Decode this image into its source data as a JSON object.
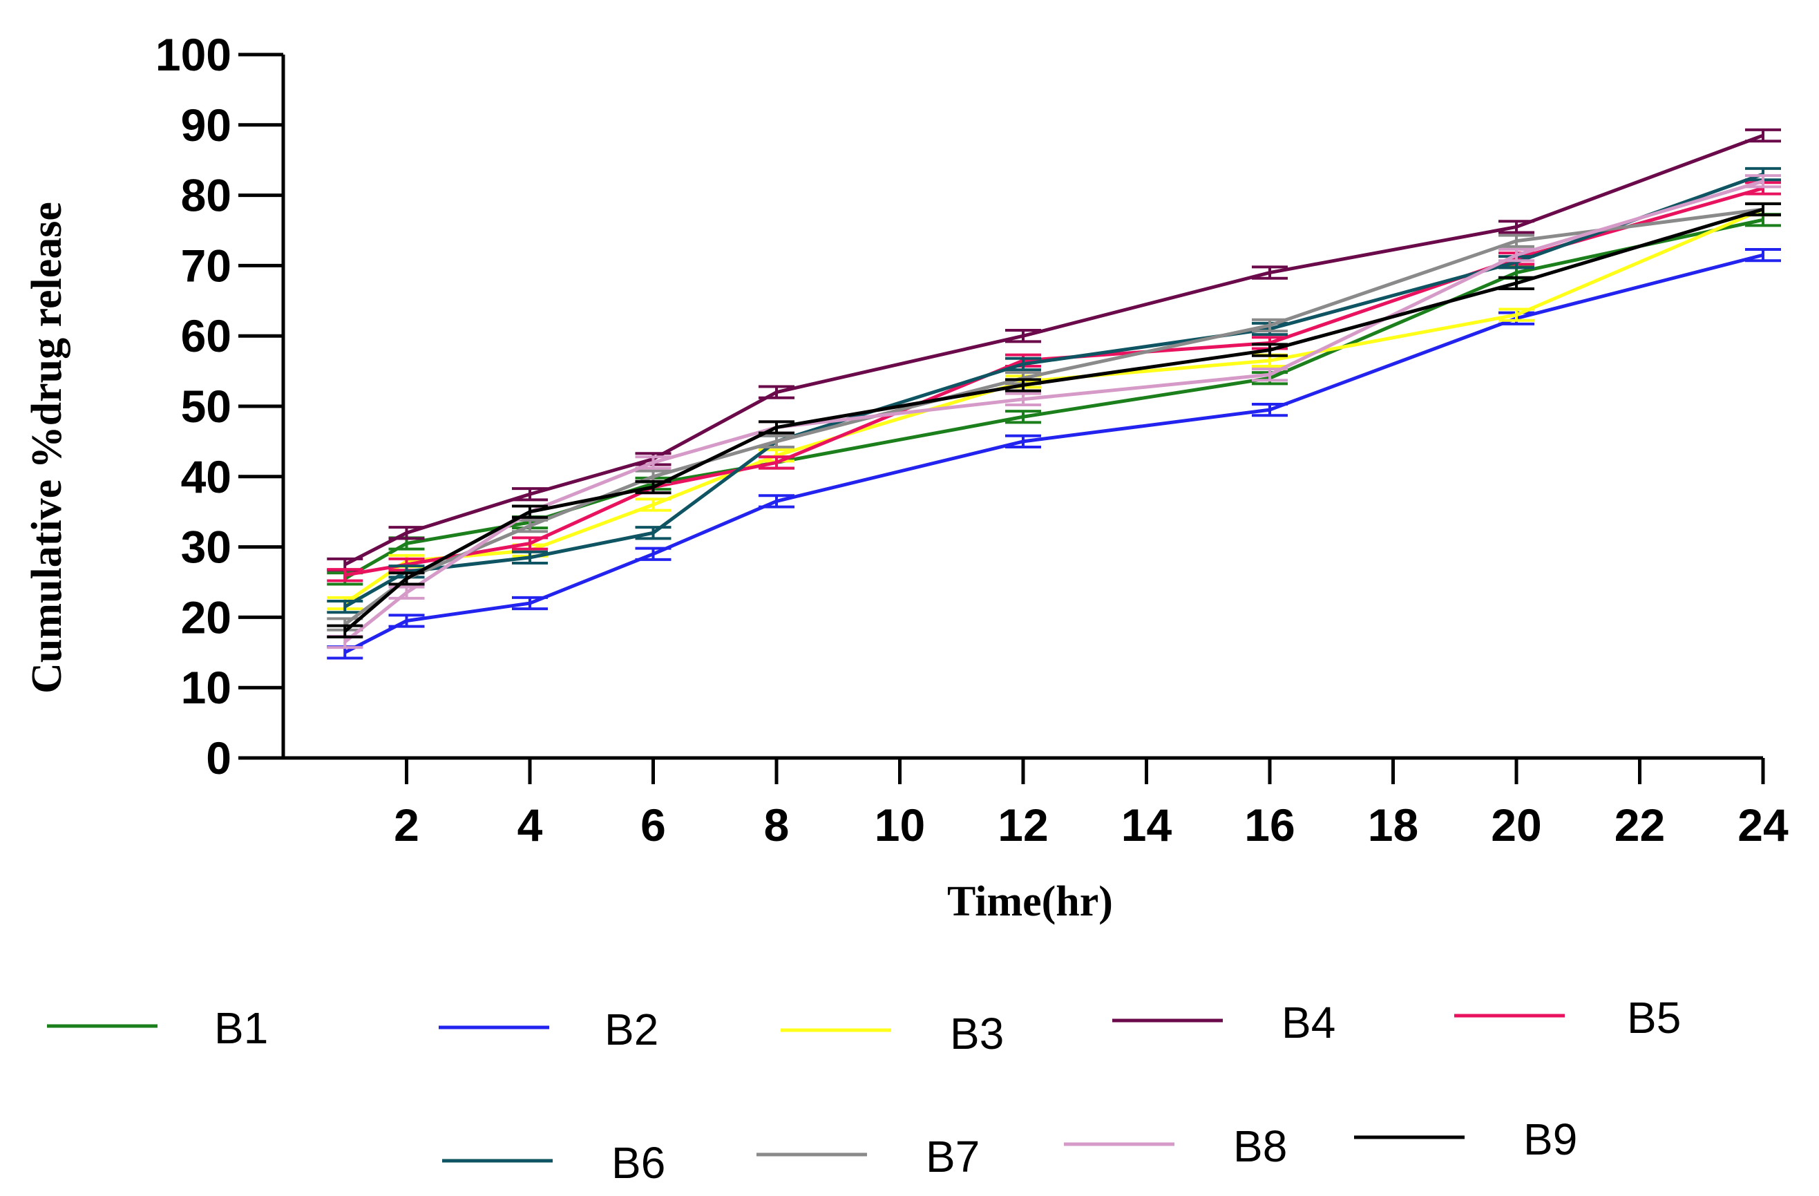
{
  "chart_data": {
    "type": "line",
    "title": "",
    "xlabel": "Time(hr)",
    "ylabel": "Cumulative %drug release",
    "xlim": [
      0,
      24
    ],
    "ylim": [
      0,
      100
    ],
    "x_ticks": [
      2,
      4,
      6,
      8,
      10,
      12,
      14,
      16,
      18,
      20,
      22,
      24
    ],
    "y_ticks": [
      0,
      10,
      20,
      30,
      40,
      50,
      60,
      70,
      80,
      90,
      100
    ],
    "x": [
      1,
      2,
      4,
      6,
      8,
      12,
      16,
      20,
      24
    ],
    "series": [
      {
        "name": "B1",
        "color": "#1b7f1b",
        "values": [
          25.5,
          30.5,
          33.5,
          39,
          42,
          48.5,
          54,
          69,
          76.5
        ],
        "errors": [
          0.8,
          0.8,
          0.8,
          0.8,
          0.8,
          0.8,
          0.8,
          0.8,
          0.8
        ]
      },
      {
        "name": "B2",
        "color": "#2323f0",
        "values": [
          15,
          19.5,
          22,
          29,
          36.5,
          45,
          49.5,
          62.5,
          71.5
        ],
        "errors": [
          0.8,
          0.8,
          0.8,
          0.8,
          0.8,
          0.8,
          0.8,
          0.8,
          0.8
        ]
      },
      {
        "name": "B3",
        "color": "#ffff1a",
        "values": [
          22,
          28,
          29.5,
          36,
          43,
          53.5,
          56.5,
          63,
          78
        ],
        "errors": [
          0.8,
          0.8,
          0.8,
          0.8,
          0.8,
          0.8,
          0.8,
          0.8,
          0.8
        ]
      },
      {
        "name": "B4",
        "color": "#6b0a4a",
        "values": [
          27.5,
          32,
          37.5,
          42.5,
          52,
          60,
          69,
          75.5,
          88.5
        ],
        "errors": [
          0.8,
          0.8,
          0.8,
          0.8,
          0.8,
          0.8,
          0.8,
          0.8,
          0.8
        ]
      },
      {
        "name": "B5",
        "color": "#e8125e",
        "values": [
          26,
          27.5,
          30.5,
          38.5,
          42,
          56.5,
          59,
          71,
          81
        ],
        "errors": [
          0.8,
          0.8,
          0.8,
          0.8,
          0.8,
          0.8,
          0.8,
          0.8,
          0.8
        ]
      },
      {
        "name": "B6",
        "color": "#0f5462",
        "values": [
          21.5,
          26.5,
          28.5,
          32,
          45,
          56,
          61,
          70.5,
          83
        ],
        "errors": [
          0.8,
          0.8,
          0.8,
          0.8,
          0.8,
          0.8,
          0.8,
          0.8,
          0.8
        ]
      },
      {
        "name": "B7",
        "color": "#8a8a8a",
        "values": [
          19,
          25.5,
          33,
          40,
          45,
          54,
          61.5,
          73.5,
          78
        ],
        "errors": [
          0.8,
          0.8,
          0.8,
          0.8,
          0.8,
          0.8,
          0.8,
          0.8,
          0.8
        ]
      },
      {
        "name": "B8",
        "color": "#d69ac8",
        "values": [
          16.5,
          23.5,
          35,
          42,
          47,
          51,
          54.5,
          71.5,
          82
        ],
        "errors": [
          0.8,
          0.8,
          0.8,
          0.8,
          0.8,
          0.8,
          0.8,
          0.8,
          0.8
        ]
      },
      {
        "name": "B9",
        "color": "#000000",
        "values": [
          18,
          25.5,
          35,
          38.5,
          47,
          53,
          58,
          67.5,
          78
        ],
        "errors": [
          0.8,
          0.8,
          0.8,
          0.8,
          0.8,
          0.8,
          0.8,
          0.8,
          0.8
        ]
      }
    ]
  }
}
